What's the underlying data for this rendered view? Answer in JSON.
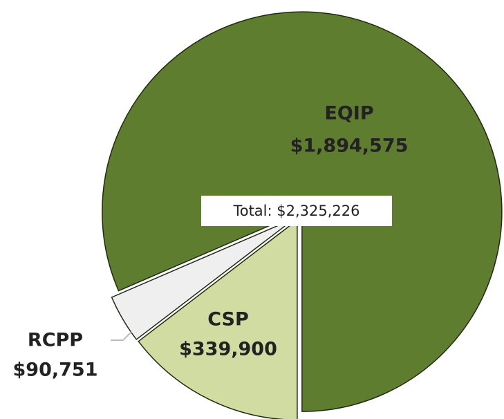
{
  "chart_data": {
    "type": "pie",
    "categories": [
      "CSP",
      "RCPP",
      "EQIP"
    ],
    "values": [
      339900,
      90751,
      1894575
    ],
    "value_labels": [
      "$339,900",
      "$90,751",
      "$1,894,575"
    ],
    "colors": [
      "#d1dca2",
      "#efefef",
      "#5e7d2e"
    ],
    "annotation": "Total: $2,325,226"
  }
}
